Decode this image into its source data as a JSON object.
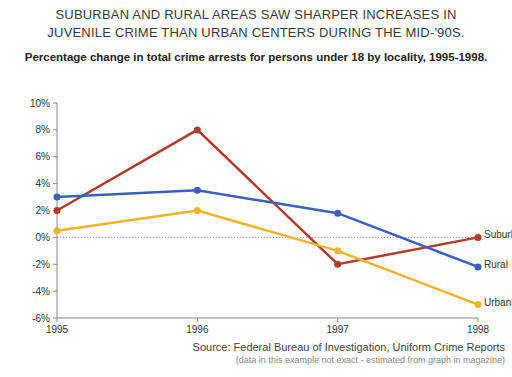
{
  "chart_data": {
    "type": "line",
    "title": "SUBURBAN AND RURAL AREAS SAW SHARPER INCREASES IN JUVENILE CRIME THAN URBAN CENTERS DURING THE MID-'90S.",
    "subtitle": "Percentage change in total crime arrests for persons under 18 by locality, 1995-1998.",
    "source": "Source: Federal Bureau of Investigation, Uniform Crime Reports",
    "note": "(data in this example not exact - estimated from graph in magazine)",
    "x": [
      1995,
      1996,
      1997,
      1998
    ],
    "xlim": [
      1995,
      1998
    ],
    "xticks": [
      1995,
      1996,
      1997,
      1998
    ],
    "ylim": [
      -6,
      10
    ],
    "yticks": [
      {
        "value": -6,
        "label": "-6%"
      },
      {
        "value": -4,
        "label": "-4%"
      },
      {
        "value": -2,
        "label": "-2%"
      },
      {
        "value": 0,
        "label": "0%"
      },
      {
        "value": 2,
        "label": "2%"
      },
      {
        "value": 4,
        "label": "4%"
      },
      {
        "value": 6,
        "label": "6%"
      },
      {
        "value": 8,
        "label": "8%"
      },
      {
        "value": 10,
        "label": "10%"
      }
    ],
    "grid": false,
    "marker": "circle",
    "line_style": "solid",
    "series": [
      {
        "name": "Suburban",
        "color": "#b23b2c",
        "values": [
          2,
          8,
          -2,
          0
        ]
      },
      {
        "name": "Rural",
        "color": "#3b5fc0",
        "values": [
          3,
          3.5,
          1.8,
          -2.2
        ]
      },
      {
        "name": "Urban",
        "color": "#f0b32e",
        "values": [
          0.5,
          2,
          -1,
          -5
        ]
      }
    ]
  }
}
